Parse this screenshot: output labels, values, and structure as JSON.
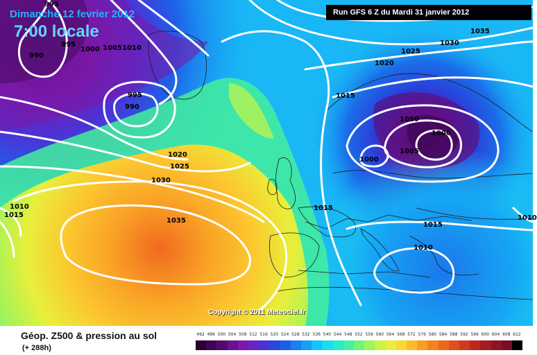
{
  "header": {
    "date_title": "Dimanche 12 fevrier 2012",
    "time_title": "7:00 locale",
    "run_info": "Run GFS 6 Z du Mardi 31 janvier 2012"
  },
  "copyright": "Copyright © 2011 Meteociel.fr",
  "legend": {
    "title": "Géop. Z500 & pression au sol",
    "subtitle": "(+ 288h)",
    "scale_values": [
      "492",
      "496",
      "500",
      "504",
      "508",
      "512",
      "516",
      "520",
      "524",
      "528",
      "532",
      "536",
      "540",
      "544",
      "548",
      "552",
      "556",
      "560",
      "564",
      "568",
      "572",
      "576",
      "580",
      "584",
      "588",
      "592",
      "596",
      "600",
      "604",
      "608",
      "612"
    ],
    "scale_colors": [
      "#2a0033",
      "#3e0652",
      "#52096e",
      "#6b1090",
      "#7d18ad",
      "#6a23c6",
      "#4a33d6",
      "#2a46e0",
      "#1b5fe8",
      "#1a7ff0",
      "#15a0f6",
      "#14c3f7",
      "#17ddee",
      "#28ebc9",
      "#43f2a0",
      "#6ef57a",
      "#9ef55a",
      "#c9f443",
      "#ebee3a",
      "#fbd834",
      "#fcbc2c",
      "#fa9e25",
      "#f5821f",
      "#ec681d",
      "#df4f1c",
      "#cf3a1d",
      "#bb281f",
      "#a51b22",
      "#8f1326",
      "#7a0d2a",
      "#000000"
    ]
  },
  "isobars": [
    {
      "label": "995",
      "name": "isobar-995-top"
    },
    {
      "label": "990",
      "name": "isobar-990-west"
    },
    {
      "label": "995",
      "name": "isobar-995-west"
    },
    {
      "label": "1000",
      "name": "isobar-1000-top"
    },
    {
      "label": "1005",
      "name": "isobar-1005-top"
    },
    {
      "label": "1010",
      "name": "isobar-1010-top"
    },
    {
      "label": "995",
      "name": "isobar-995-low"
    },
    {
      "label": "990",
      "name": "isobar-990-low"
    },
    {
      "label": "1020",
      "name": "isobar-1020-mid"
    },
    {
      "label": "1025",
      "name": "isobar-1025-mid"
    },
    {
      "label": "1030",
      "name": "isobar-1030-mid"
    },
    {
      "label": "1035",
      "name": "isobar-1035-anticyclone"
    },
    {
      "label": "1010",
      "name": "isobar-1010-left-a"
    },
    {
      "label": "1015",
      "name": "isobar-1015-left-b"
    },
    {
      "label": "1015",
      "name": "isobar-1015-europe"
    },
    {
      "label": "1035",
      "name": "isobar-1035-ne"
    },
    {
      "label": "1030",
      "name": "isobar-1030-ne"
    },
    {
      "label": "1025",
      "name": "isobar-1025-ne"
    },
    {
      "label": "1020",
      "name": "isobar-1020-ne"
    },
    {
      "label": "1015",
      "name": "isobar-1015-n"
    },
    {
      "label": "1010",
      "name": "isobar-1010-east"
    },
    {
      "label": "1000",
      "name": "isobar-1000-east"
    },
    {
      "label": "1005",
      "name": "isobar-1005-east"
    },
    {
      "label": "1000",
      "name": "isobar-1000-baltic"
    },
    {
      "label": "1015",
      "name": "isobar-1015-balkans"
    },
    {
      "label": "1010",
      "name": "isobar-1010-med"
    },
    {
      "label": "1010",
      "name": "isobar-1010-right-edge"
    }
  ]
}
